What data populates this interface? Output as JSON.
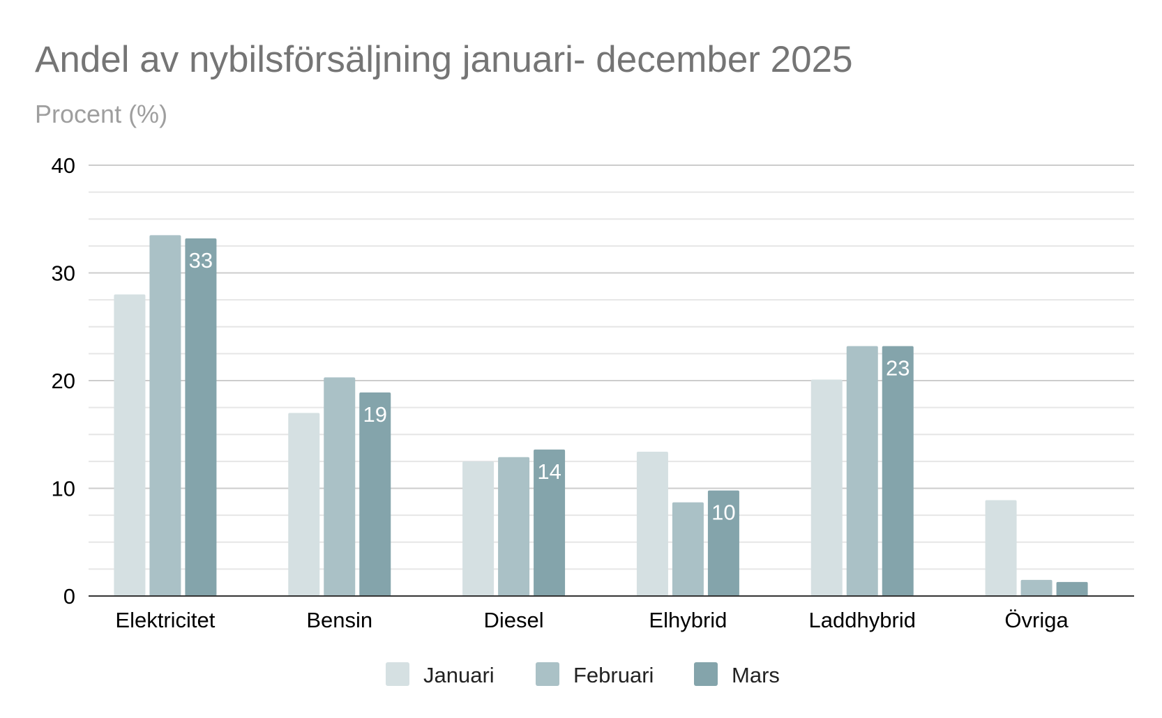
{
  "chart_data": {
    "type": "bar",
    "title": "Andel av nybilsförsäljning januari- december 2025",
    "subtitle": "Procent (%)",
    "categories": [
      "Elektricitet",
      "Bensin",
      "Diesel",
      "Elhybrid",
      "Laddhybrid",
      "Övriga"
    ],
    "series": [
      {
        "name": "Januari",
        "color": "#d5e0e2",
        "values": [
          28,
          17,
          12.5,
          13.4,
          20.1,
          8.9
        ]
      },
      {
        "name": "Februari",
        "color": "#aac1c6",
        "values": [
          33.5,
          20.3,
          12.9,
          8.7,
          23.2,
          1.5
        ]
      },
      {
        "name": "Mars",
        "color": "#84a4ab",
        "values": [
          33.2,
          18.9,
          13.6,
          9.8,
          23.2,
          1.3
        ]
      }
    ],
    "data_labels": {
      "series": "Mars",
      "labels": [
        "33",
        "19",
        "14",
        "10",
        "23",
        ""
      ]
    },
    "yticks": [
      "0",
      "10",
      "20",
      "30",
      "40"
    ],
    "ylim": [
      0,
      40
    ],
    "grid": true,
    "minor_grid_step": 2.5,
    "legend_position": "bottom"
  }
}
